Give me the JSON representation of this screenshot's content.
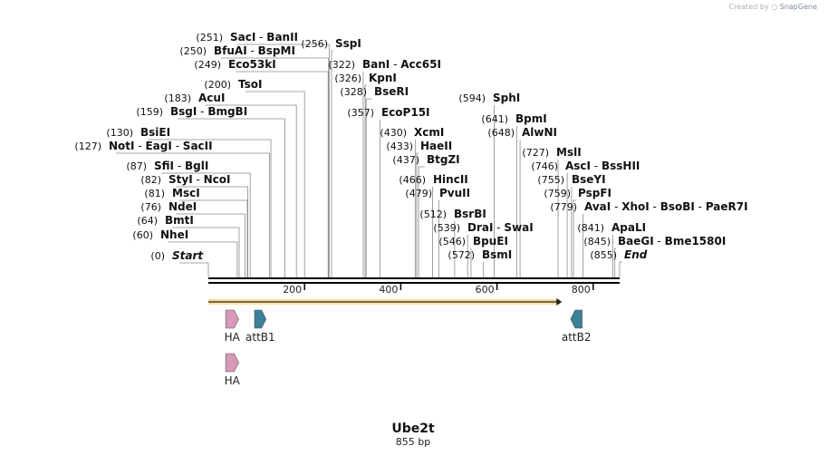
{
  "credit": {
    "created_by": "Created by",
    "brand": "SnapGene"
  },
  "map": {
    "title": "Ube2t",
    "length_label": "855 bp",
    "total_bp": 855,
    "ticks": [
      200,
      400,
      600,
      800
    ],
    "sites": [
      {
        "pos": "(0)",
        "names": [
          "Start"
        ],
        "italic": true,
        "bp": 0
      },
      {
        "pos": "(60)",
        "names": [
          "NheI"
        ],
        "bp": 60
      },
      {
        "pos": "(64)",
        "names": [
          "BmtI"
        ],
        "bp": 64
      },
      {
        "pos": "(76)",
        "names": [
          "NdeI"
        ],
        "bp": 76
      },
      {
        "pos": "(81)",
        "names": [
          "MscI"
        ],
        "bp": 81
      },
      {
        "pos": "(82)",
        "names": [
          "StyI",
          "NcoI"
        ],
        "bp": 82
      },
      {
        "pos": "(87)",
        "names": [
          "SfiI",
          "BglI"
        ],
        "bp": 87
      },
      {
        "pos": "(127)",
        "names": [
          "NotI",
          "EagI",
          "SacII"
        ],
        "bp": 127
      },
      {
        "pos": "(130)",
        "names": [
          "BsiEI"
        ],
        "bp": 130
      },
      {
        "pos": "(159)",
        "names": [
          "BsgI",
          "BmgBI"
        ],
        "bp": 159
      },
      {
        "pos": "(183)",
        "names": [
          "AcuI"
        ],
        "bp": 183
      },
      {
        "pos": "(200)",
        "names": [
          "TsoI"
        ],
        "bp": 200
      },
      {
        "pos": "(249)",
        "names": [
          "Eco53kI"
        ],
        "bp": 249
      },
      {
        "pos": "(250)",
        "names": [
          "BfuAI",
          "BspMI"
        ],
        "bp": 250
      },
      {
        "pos": "(251)",
        "names": [
          "SacI",
          "BanII"
        ],
        "bp": 251
      },
      {
        "pos": "(256)",
        "names": [
          "SspI"
        ],
        "bp": 256
      },
      {
        "pos": "(322)",
        "names": [
          "BanI",
          "Acc65I"
        ],
        "bp": 322
      },
      {
        "pos": "(326)",
        "names": [
          "KpnI"
        ],
        "bp": 326
      },
      {
        "pos": "(328)",
        "names": [
          "BseRI"
        ],
        "bp": 328
      },
      {
        "pos": "(357)",
        "names": [
          "EcoP15I"
        ],
        "bp": 357
      },
      {
        "pos": "(430)",
        "names": [
          "XcmI"
        ],
        "bp": 430
      },
      {
        "pos": "(433)",
        "names": [
          "HaeII"
        ],
        "bp": 433
      },
      {
        "pos": "(437)",
        "names": [
          "BtgZI"
        ],
        "bp": 437
      },
      {
        "pos": "(466)",
        "names": [
          "HincII"
        ],
        "bp": 466
      },
      {
        "pos": "(479)",
        "names": [
          "PvuII"
        ],
        "bp": 479
      },
      {
        "pos": "(512)",
        "names": [
          "BsrBI"
        ],
        "bp": 512
      },
      {
        "pos": "(539)",
        "names": [
          "DraI",
          "SwaI"
        ],
        "bp": 539
      },
      {
        "pos": "(546)",
        "names": [
          "BpuEI"
        ],
        "bp": 546
      },
      {
        "pos": "(572)",
        "names": [
          "BsmI"
        ],
        "bp": 572
      },
      {
        "pos": "(594)",
        "names": [
          "SphI"
        ],
        "bp": 594
      },
      {
        "pos": "(641)",
        "names": [
          "BpmI"
        ],
        "bp": 641
      },
      {
        "pos": "(648)",
        "names": [
          "AlwNI"
        ],
        "bp": 648
      },
      {
        "pos": "(727)",
        "names": [
          "MslI"
        ],
        "bp": 727
      },
      {
        "pos": "(746)",
        "names": [
          "AscI",
          "BssHII"
        ],
        "bp": 746
      },
      {
        "pos": "(755)",
        "names": [
          "BseYI"
        ],
        "bp": 755
      },
      {
        "pos": "(759)",
        "names": [
          "PspFI"
        ],
        "bp": 759
      },
      {
        "pos": "(779)",
        "names": [
          "AvaI",
          "XhoI",
          "BsoBI",
          "PaeR7I"
        ],
        "bp": 779
      },
      {
        "pos": "(841)",
        "names": [
          "ApaLI"
        ],
        "bp": 841
      },
      {
        "pos": "(845)",
        "names": [
          "BaeGI",
          "Bme1580I"
        ],
        "bp": 845
      },
      {
        "pos": "(855)",
        "names": [
          "End"
        ],
        "italic": true,
        "bp": 855
      }
    ],
    "orf": {
      "start_bp": 0,
      "end_bp": 735,
      "color": "#f3c34d"
    },
    "features": [
      {
        "label": "HA",
        "start_bp": 36,
        "end_bp": 63,
        "dir": "right",
        "color": "#d898b8",
        "row": 0
      },
      {
        "label": "attB1",
        "start_bp": 96,
        "end_bp": 120,
        "dir": "right",
        "color": "#3d8099",
        "row": 0
      },
      {
        "label": "attB2",
        "start_bp": 753,
        "end_bp": 777,
        "dir": "left",
        "color": "#3d8099",
        "row": 0
      },
      {
        "label": "HA",
        "start_bp": 36,
        "end_bp": 63,
        "dir": "right",
        "color": "#d898b8",
        "row": 1
      }
    ]
  }
}
